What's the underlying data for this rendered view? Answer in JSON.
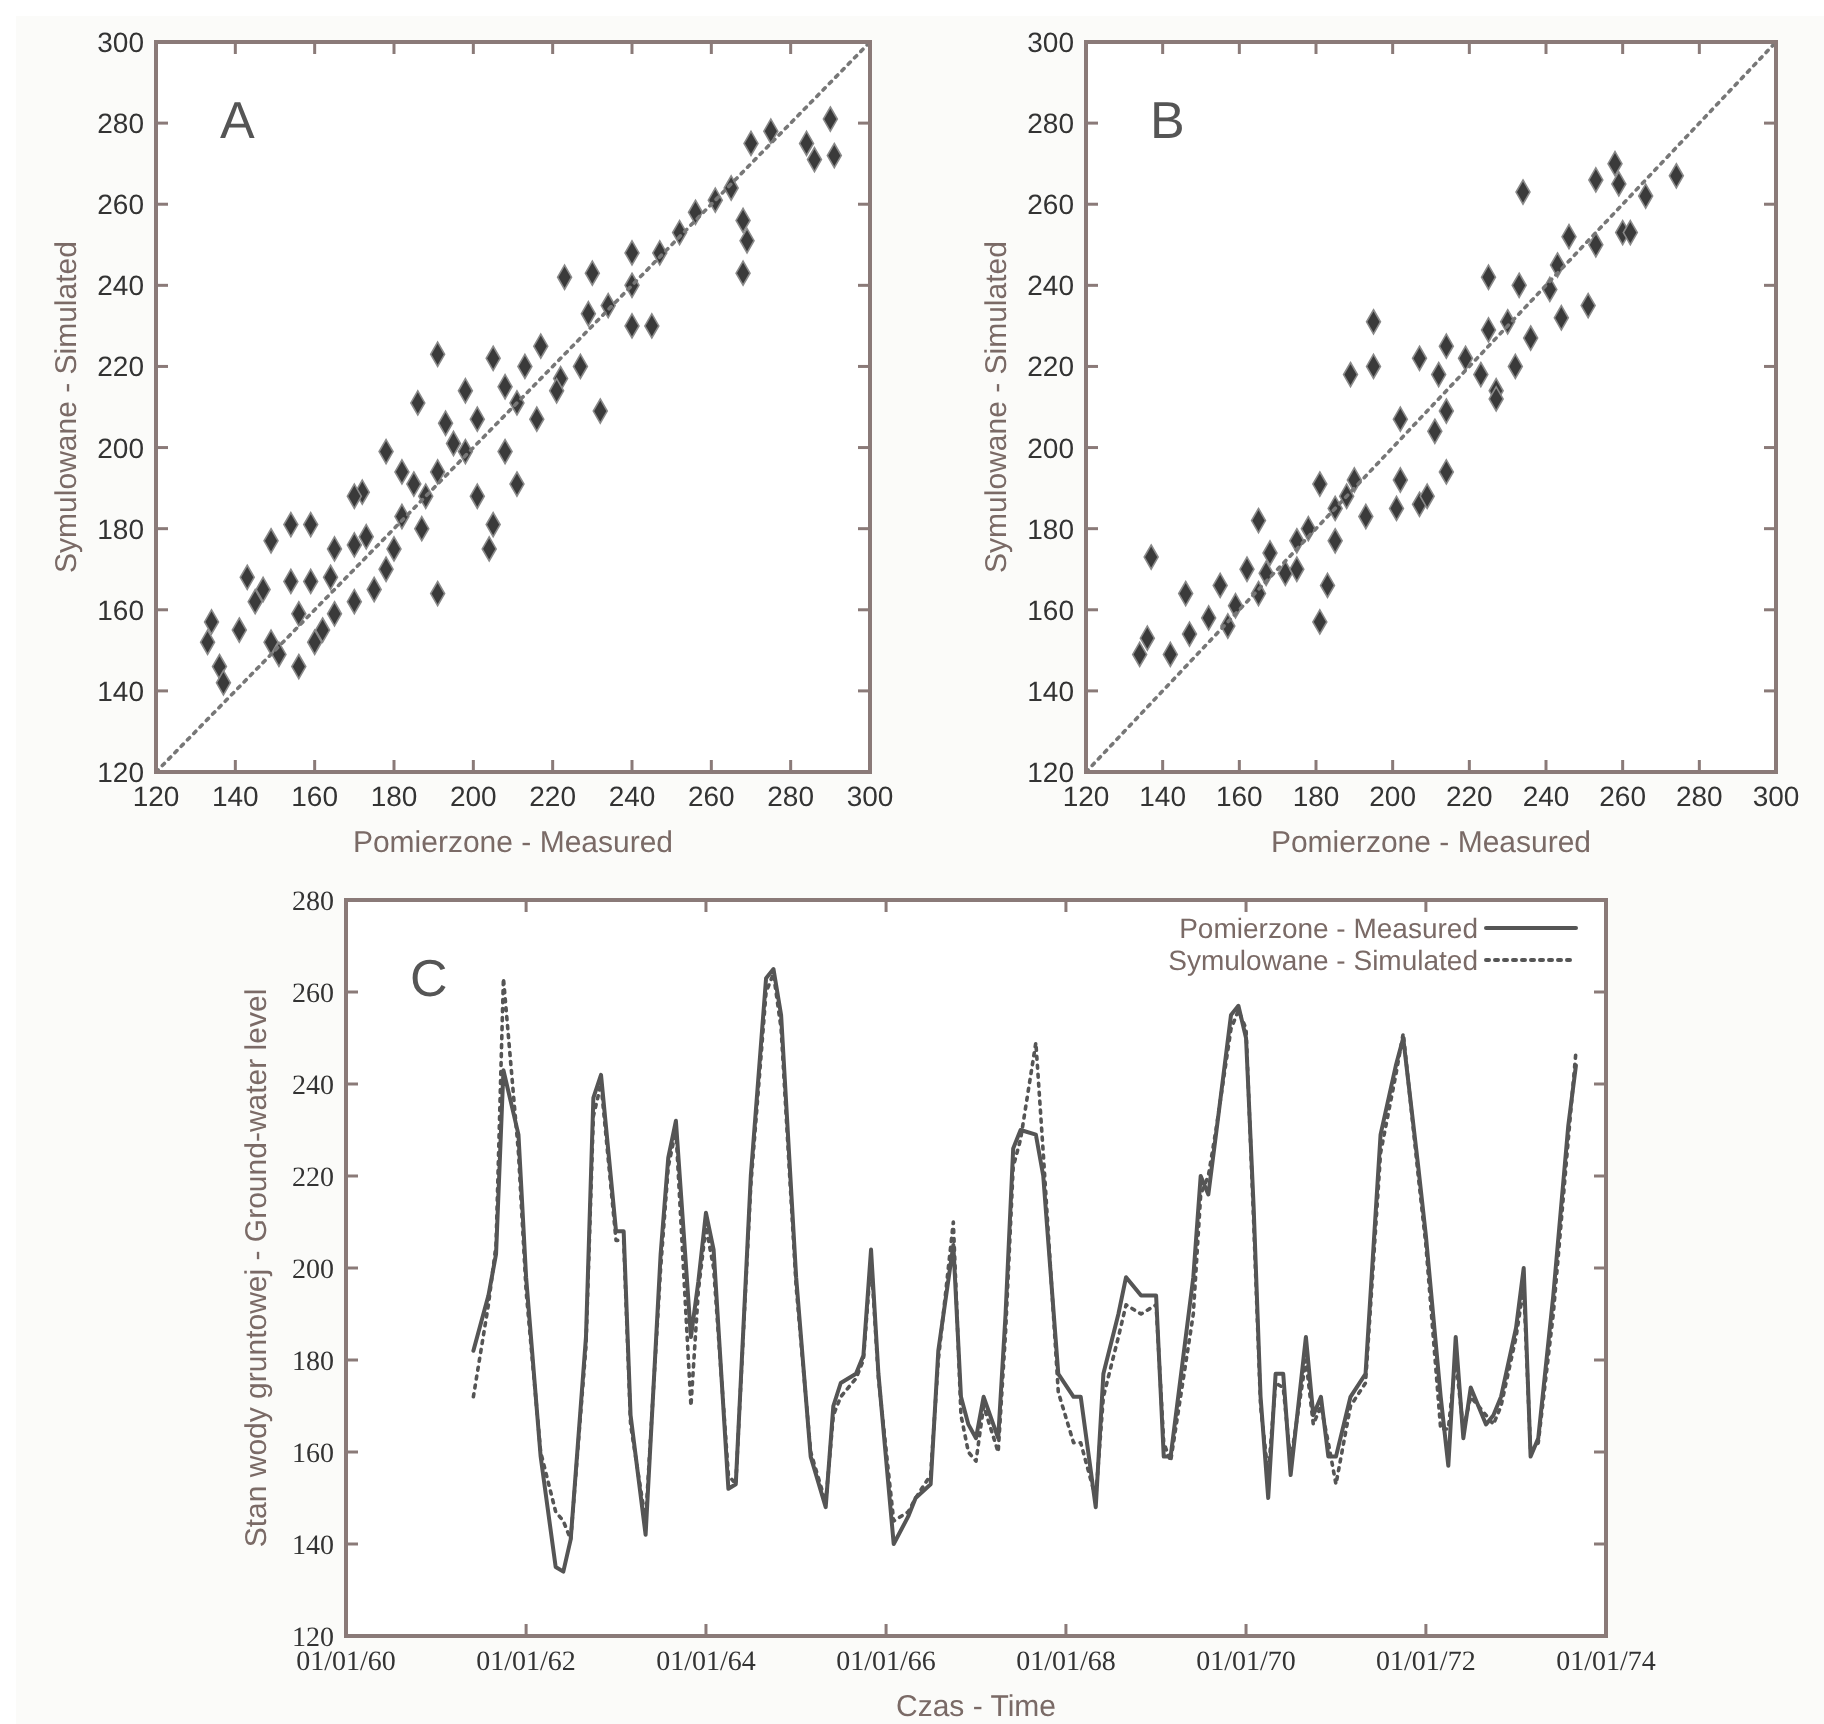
{
  "chart_data": [
    {
      "type": "scatter",
      "annotations": [
        "A"
      ],
      "xlabel": "Pomierzone - Measured",
      "ylabel": "Symulowane - Simulated",
      "xlim": [
        120,
        300
      ],
      "ylim": [
        120,
        300
      ],
      "xticks": [
        120,
        140,
        160,
        180,
        200,
        220,
        240,
        260,
        280,
        300
      ],
      "yticks": [
        120,
        140,
        160,
        180,
        200,
        220,
        240,
        260,
        280,
        300
      ],
      "series": [
        {
          "marker": "diamond",
          "color": "#3a3a3a",
          "x": [
            134,
            133,
            136,
            137,
            141,
            145,
            143,
            149,
            154,
            159,
            151,
            156,
            160,
            165,
            170,
            175,
            178,
            172,
            182,
            185,
            186,
            191,
            191,
            191,
            195,
            198,
            201,
            205,
            205,
            204,
            208,
            211,
            213,
            217,
            216,
            222,
            227,
            232,
            229,
            223,
            234,
            240,
            240,
            245,
            247,
            252,
            256,
            261,
            265,
            268,
            269,
            268,
            270,
            275,
            284,
            286,
            290,
            291,
            165,
            159,
            147,
            156,
            149,
            170,
            178,
            188,
            198,
            201,
            211,
            221,
            187,
            173,
            164,
            170,
            180,
            162,
            154,
            182,
            193,
            208,
            240,
            230
          ],
          "values": [
            157,
            152,
            146,
            142,
            155,
            162,
            168,
            177,
            181,
            181,
            149,
            146,
            152,
            159,
            162,
            165,
            170,
            189,
            183,
            191,
            211,
            194,
            223,
            164,
            201,
            214,
            207,
            222,
            181,
            175,
            199,
            191,
            220,
            225,
            207,
            217,
            220,
            209,
            233,
            242,
            235,
            240,
            230,
            230,
            248,
            253,
            258,
            261,
            264,
            256,
            251,
            243,
            275,
            278,
            275,
            271,
            281,
            272,
            175,
            167,
            165,
            159,
            152,
            188,
            199,
            188,
            199,
            188,
            211,
            214,
            180,
            178,
            168,
            176,
            175,
            155,
            167,
            194,
            206,
            215,
            248,
            243
          ]
        },
        {
          "type": "line",
          "color": "#777777",
          "line_style": "dotted",
          "x": [
            120,
            300
          ],
          "values": [
            120,
            300
          ]
        }
      ]
    },
    {
      "type": "scatter",
      "annotations": [
        "B"
      ],
      "xlabel": "Pomierzone - Measured",
      "ylabel": "Symulowane - Simulated",
      "xlim": [
        120,
        300
      ],
      "ylim": [
        120,
        300
      ],
      "xticks": [
        120,
        140,
        160,
        180,
        200,
        220,
        240,
        260,
        280,
        300
      ],
      "yticks": [
        120,
        140,
        160,
        180,
        200,
        220,
        240,
        260,
        280,
        300
      ],
      "series": [
        {
          "marker": "diamond",
          "color": "#3a3a3a",
          "x": [
            134,
            137,
            136,
            142,
            146,
            147,
            152,
            155,
            159,
            162,
            165,
            165,
            168,
            172,
            175,
            178,
            181,
            183,
            181,
            185,
            188,
            190,
            193,
            189,
            195,
            195,
            201,
            202,
            202,
            207,
            207,
            209,
            211,
            212,
            214,
            214,
            219,
            223,
            225,
            225,
            227,
            230,
            232,
            233,
            234,
            236,
            241,
            243,
            244,
            246,
            251,
            253,
            253,
            258,
            260,
            262,
            266,
            274,
            259,
            167,
            157,
            175,
            214,
            185,
            227
          ],
          "values": [
            149,
            173,
            153,
            149,
            164,
            154,
            158,
            166,
            161,
            170,
            182,
            164,
            174,
            169,
            177,
            180,
            191,
            166,
            157,
            185,
            188,
            192,
            183,
            218,
            231,
            220,
            185,
            192,
            207,
            186,
            222,
            188,
            204,
            218,
            225,
            194,
            222,
            218,
            242,
            229,
            214,
            231,
            220,
            240,
            263,
            227,
            239,
            245,
            232,
            252,
            235,
            250,
            266,
            270,
            253,
            253,
            262,
            267,
            265,
            169,
            156,
            170,
            209,
            177,
            212
          ]
        },
        {
          "type": "line",
          "color": "#777777",
          "line_style": "dotted",
          "x": [
            120,
            300
          ],
          "values": [
            120,
            300
          ]
        }
      ]
    },
    {
      "type": "line",
      "annotations": [
        "C"
      ],
      "xlabel": "Czas - Time",
      "ylabel": "Stan wody gruntowej - Ground-water level",
      "legend": "top right",
      "xlim": [
        "1960-01-01",
        "1974-01-01"
      ],
      "ylim": [
        120,
        280
      ],
      "xticks": [
        {
          "value": "1960-01-01",
          "label": "01/01/60"
        },
        {
          "value": "1962-01-01",
          "label": "01/01/62"
        },
        {
          "value": "1964-01-01",
          "label": "01/01/64"
        },
        {
          "value": "1966-01-01",
          "label": "01/01/66"
        },
        {
          "value": "1968-01-01",
          "label": "01/01/68"
        },
        {
          "value": "1970-01-01",
          "label": "01/01/70"
        },
        {
          "value": "1972-01-01",
          "label": "01/01/72"
        },
        {
          "value": "1974-01-01",
          "label": "01/01/74"
        }
      ],
      "yticks": [
        120,
        140,
        160,
        180,
        200,
        220,
        240,
        260,
        280
      ],
      "x": [
        "1961-06",
        "1961-08",
        "1961-09",
        "1961-10",
        "1961-12",
        "1962-01",
        "1962-03",
        "1962-05",
        "1962-06",
        "1962-07",
        "1962-09",
        "1962-10",
        "1962-11",
        "1963-01",
        "1963-02",
        "1963-03",
        "1963-05",
        "1963-07",
        "1963-08",
        "1963-09",
        "1963-11",
        "1963-12",
        "1964-01",
        "1964-02",
        "1964-04",
        "1964-05",
        "1964-07",
        "1964-09",
        "1964-10",
        "1964-11",
        "1965-01",
        "1965-03",
        "1965-05",
        "1965-06",
        "1965-07",
        "1965-09",
        "1965-10",
        "1965-11",
        "1965-12",
        "1966-02",
        "1966-04",
        "1966-05",
        "1966-07",
        "1966-08",
        "1966-10",
        "1966-11",
        "1966-12",
        "1967-01",
        "1967-02",
        "1967-04",
        "1967-05",
        "1967-06",
        "1967-07",
        "1967-09",
        "1967-10",
        "1967-12",
        "1968-02",
        "1968-03",
        "1968-05",
        "1968-06",
        "1968-08",
        "1968-09",
        "1968-11",
        "1969-01",
        "1969-02",
        "1969-03",
        "1969-06",
        "1969-07",
        "1969-08",
        "1969-09",
        "1969-11",
        "1969-12",
        "1970-01",
        "1970-02",
        "1970-03",
        "1970-04",
        "1970-05",
        "1970-06",
        "1970-07",
        "1970-09",
        "1970-10",
        "1970-11",
        "1970-12",
        "1971-01",
        "1971-03",
        "1971-05",
        "1971-07",
        "1971-09",
        "1971-10",
        "1971-12",
        "1972-01",
        "1972-03",
        "1972-04",
        "1972-05",
        "1972-06",
        "1972-07",
        "1972-09",
        "1972-10",
        "1972-11",
        "1973-01",
        "1973-02",
        "1973-03",
        "1973-04",
        "1973-06",
        "1973-08",
        "1973-09"
      ],
      "series": [
        {
          "name": "Pomierzone - Measured",
          "color": "#555555",
          "line_style": "solid",
          "values": [
            182,
            194,
            203,
            243,
            229,
            198,
            159,
            135,
            134,
            141,
            185,
            237,
            242,
            208,
            208,
            168,
            142,
            203,
            224,
            232,
            185,
            197,
            212,
            204,
            152,
            153,
            220,
            263,
            265,
            255,
            198,
            159,
            148,
            170,
            175,
            177,
            181,
            204,
            177,
            140,
            146,
            150,
            153,
            182,
            205,
            172,
            166,
            163,
            172,
            163,
            190,
            226,
            230,
            229,
            220,
            177,
            172,
            172,
            148,
            177,
            190,
            198,
            194,
            194,
            159,
            159,
            198,
            220,
            216,
            229,
            255,
            257,
            250,
            213,
            172,
            150,
            177,
            177,
            155,
            185,
            168,
            172,
            159,
            159,
            172,
            177,
            229,
            244,
            250,
            222,
            207,
            172,
            157,
            185,
            163,
            174,
            166,
            168,
            172,
            187,
            200,
            159,
            163,
            194,
            231,
            244
          ]
        },
        {
          "name": "Symulowane - Simulated",
          "color": "#555555",
          "line_style": "dotted",
          "values": [
            172,
            192,
            205,
            263,
            225,
            195,
            160,
            147,
            145,
            141,
            183,
            233,
            240,
            206,
            206,
            166,
            145,
            200,
            222,
            230,
            170,
            195,
            209,
            200,
            155,
            153,
            218,
            260,
            264,
            252,
            196,
            160,
            149,
            168,
            172,
            176,
            180,
            202,
            176,
            145,
            147,
            150,
            155,
            180,
            210,
            168,
            160,
            158,
            170,
            160,
            186,
            222,
            228,
            249,
            225,
            173,
            162,
            162,
            150,
            172,
            185,
            192,
            190,
            192,
            162,
            158,
            190,
            216,
            220,
            230,
            252,
            256,
            252,
            210,
            170,
            155,
            175,
            174,
            158,
            180,
            166,
            170,
            162,
            153,
            170,
            175,
            225,
            242,
            251,
            220,
            205,
            165,
            165,
            180,
            165,
            172,
            168,
            166,
            170,
            185,
            196,
            160,
            162,
            190,
            228,
            247
          ]
        }
      ]
    }
  ]
}
